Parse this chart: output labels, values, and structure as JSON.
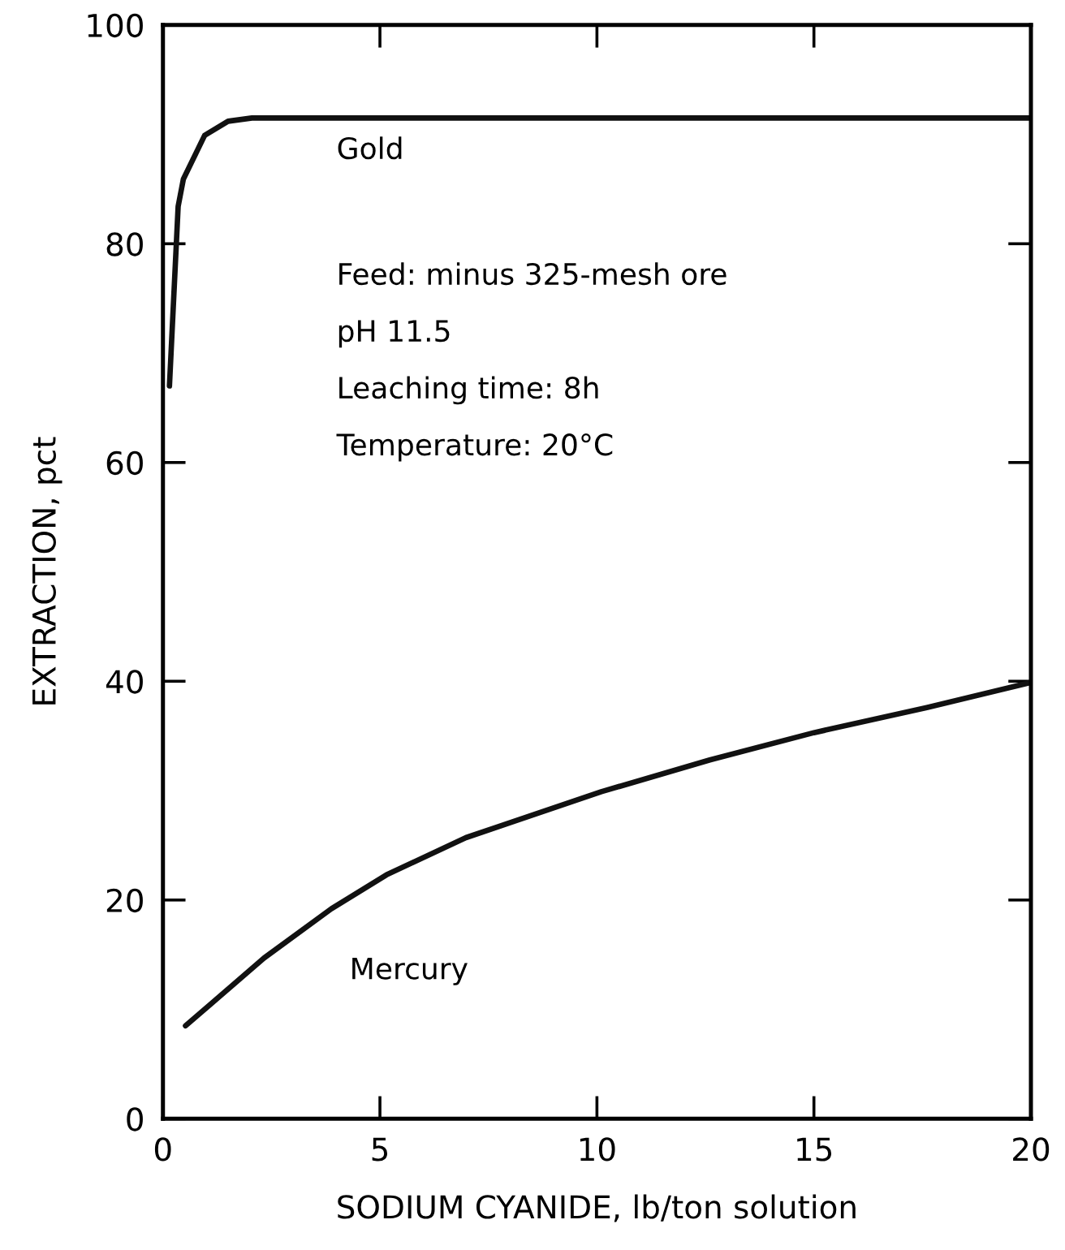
{
  "chart_data": {
    "type": "line",
    "xlabel": "SODIUM CYANIDE, lb/ton solution",
    "ylabel": "EXTRACTION, pct",
    "xlim": [
      0,
      20
    ],
    "ylim": [
      0,
      100
    ],
    "xticks": [
      0,
      5,
      10,
      15,
      20
    ],
    "yticks": [
      0,
      20,
      40,
      60,
      80,
      100
    ],
    "grid": false,
    "legend": false,
    "marker": "none",
    "line_style": "solid",
    "series": [
      {
        "name": "Gold",
        "color": "#111111",
        "x": [
          0.15,
          0.35,
          0.47,
          0.96,
          1.5,
          2.05,
          20
        ],
        "values": [
          67,
          83.4,
          85.9,
          89.9,
          91.2,
          91.5,
          91.5
        ]
      },
      {
        "name": "Mercury",
        "color": "#111111",
        "x": [
          0.52,
          2.33,
          3.88,
          5.15,
          6.98,
          10.1,
          12.6,
          15.0,
          17.6,
          20
        ],
        "values": [
          8.5,
          14.7,
          19.2,
          22.3,
          25.7,
          29.9,
          32.8,
          35.3,
          37.6,
          39.9
        ]
      }
    ],
    "annotations": [
      "Feed: minus 325-mesh ore",
      "pH 11.5",
      "Leaching time: 8h",
      "Temperature: 20°C"
    ]
  }
}
